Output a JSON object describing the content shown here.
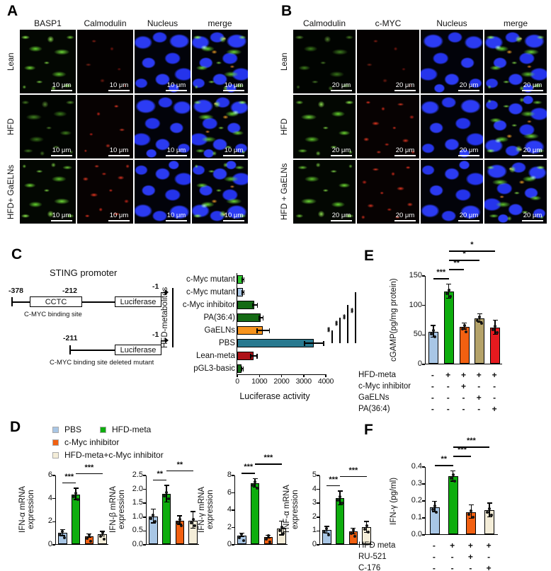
{
  "panelA": {
    "label": "A",
    "columns": [
      "BASP1",
      "Calmodulin",
      "Nucleus",
      "merge"
    ],
    "rows": [
      "Lean",
      "HFD",
      "HFD+ GaELNs"
    ],
    "scale_bar": "10 μm"
  },
  "panelB": {
    "label": "B",
    "columns": [
      "Calmodulin",
      "c-MYC",
      "Nucleus",
      "merge"
    ],
    "rows": [
      "Lean",
      "HFD",
      "HFD + GaELNs"
    ],
    "scale_bar": "20 μm"
  },
  "panelC": {
    "label": "C",
    "diagram": {
      "title": "STING promoter",
      "construct1": {
        "start": "-378",
        "site_box": "CCTC",
        "site_pos": "-212",
        "reporter": "Luciferase",
        "end": "-1",
        "caption": "C-MYC binding site"
      },
      "construct2": {
        "start": "-211",
        "reporter": "Luciferase",
        "end": "-1",
        "caption": "C-MYC binding site deleted mutant"
      }
    }
  },
  "panelD": {
    "label": "D",
    "legend": [
      {
        "label": "PBS",
        "color": "#a8c6e5"
      },
      {
        "label": "HFD-meta",
        "color": "#0ead0e"
      },
      {
        "label": "c-Myc inhibitor",
        "color": "#f26011"
      },
      {
        "label": "HFD-meta+c-Myc inhibitor",
        "color": "#f4edd8"
      }
    ]
  },
  "panelE": {
    "label": "E"
  },
  "panelF": {
    "label": "F"
  },
  "chart_data": [
    {
      "id": "luciferase",
      "type": "bar",
      "orientation": "horizontal",
      "xlabel": "Luciferase activity",
      "xlim": [
        0,
        4000
      ],
      "xticks": [
        0,
        1000,
        2000,
        3000,
        4000
      ],
      "categories": [
        "c-Myc mutant",
        "c-Myc mutant",
        "c-Myc inhibitor",
        "PA(36:4)",
        "GaELNs",
        "PBS",
        "Lean-meta",
        "pGL3-basic"
      ],
      "values": [
        240,
        240,
        780,
        1050,
        1150,
        3450,
        730,
        200
      ],
      "errors": [
        40,
        40,
        110,
        90,
        280,
        430,
        140,
        40
      ],
      "colors": [
        "#2fca2f",
        "#a8c6e5",
        "#156b15",
        "#156b15",
        "#f7941d",
        "#28798f",
        "#ae1117",
        "#156b15"
      ],
      "group_label": {
        "text": "HFD-metabolites",
        "from": 1,
        "to": 5
      },
      "sig": [
        {
          "a": 5,
          "b": 4,
          "label": "***"
        },
        {
          "a": 5,
          "b": 3,
          "label": "***"
        },
        {
          "a": 5,
          "b": 2,
          "label": "***"
        },
        {
          "a": 5,
          "b": 1,
          "label": "***"
        }
      ]
    },
    {
      "id": "ifn_alpha",
      "type": "bar",
      "ylabel_lines": [
        "IFN-α mRNA",
        "expression"
      ],
      "ylim": [
        0,
        6
      ],
      "yticks": [
        0,
        2,
        4,
        6
      ],
      "categories": [
        "PBS",
        "HFD-meta",
        "c-Myc inhibitor",
        "HFD-meta+c-Myc inhibitor"
      ],
      "values": [
        0.95,
        4.3,
        0.7,
        0.85
      ],
      "errors": [
        0.25,
        0.5,
        0.15,
        0.2
      ],
      "colors": [
        "#a8c6e5",
        "#0ead0e",
        "#f26011",
        "#f4edd8"
      ],
      "sig": [
        {
          "a": 0,
          "b": 1,
          "label": "***",
          "level": 0
        },
        {
          "a": 1,
          "b": 3,
          "label": "***",
          "level": 1
        }
      ]
    },
    {
      "id": "ifn_beta",
      "type": "bar",
      "ylabel_lines": [
        "IFN-β mRNA",
        "expression"
      ],
      "ylim": [
        0,
        2.5
      ],
      "yticks": [
        0,
        0.5,
        1,
        1.5,
        2,
        2.5
      ],
      "tick_dec": 1,
      "categories": [
        "PBS",
        "HFD-meta",
        "c-Myc inhibitor",
        "HFD-meta+c-Myc inhibitor"
      ],
      "values": [
        1.0,
        1.8,
        0.85,
        0.85
      ],
      "errors": [
        0.25,
        0.3,
        0.15,
        0.3
      ],
      "colors": [
        "#a8c6e5",
        "#0ead0e",
        "#f26011",
        "#f4edd8"
      ],
      "sig": [
        {
          "a": 0,
          "b": 1,
          "label": "**",
          "level": 0
        },
        {
          "a": 1,
          "b": 3,
          "label": "**",
          "level": 1
        }
      ]
    },
    {
      "id": "ifn_gamma",
      "type": "bar",
      "ylabel_lines": [
        "IFN-γ mRNA",
        "expression"
      ],
      "ylim": [
        0,
        8
      ],
      "yticks": [
        0,
        2,
        4,
        6,
        8
      ],
      "categories": [
        "PBS",
        "HFD-meta",
        "c-Myc inhibitor",
        "HFD-meta+c-Myc inhibitor"
      ],
      "values": [
        1.0,
        7.0,
        0.8,
        1.8
      ],
      "errors": [
        0.2,
        0.5,
        0.15,
        0.8
      ],
      "colors": [
        "#a8c6e5",
        "#0ead0e",
        "#f26011",
        "#f4edd8"
      ],
      "sig": [
        {
          "a": 0,
          "b": 1,
          "label": "***",
          "level": 0
        },
        {
          "a": 1,
          "b": 3,
          "label": "***",
          "level": 1
        }
      ]
    },
    {
      "id": "tnf_alpha",
      "type": "bar",
      "ylabel_lines": [
        "TNF-α mRNA",
        "expression"
      ],
      "ylim": [
        0,
        5
      ],
      "yticks": [
        0,
        1,
        2,
        3,
        4,
        5
      ],
      "categories": [
        "PBS",
        "HFD-meta",
        "c-Myc inhibitor",
        "HFD-meta+c-Myc inhibitor"
      ],
      "values": [
        1.0,
        3.3,
        0.9,
        1.2
      ],
      "errors": [
        0.25,
        0.5,
        0.2,
        0.4
      ],
      "colors": [
        "#a8c6e5",
        "#0ead0e",
        "#f26011",
        "#f4edd8"
      ],
      "sig": [
        {
          "a": 0,
          "b": 1,
          "label": "***",
          "level": 0
        },
        {
          "a": 1,
          "b": 3,
          "label": "***",
          "level": 1
        }
      ]
    },
    {
      "id": "cgamp",
      "type": "bar",
      "ylabel_lines": [
        "cGAMP(pg/mg protein)"
      ],
      "ylim": [
        0,
        150
      ],
      "yticks": [
        0,
        50,
        100,
        150
      ],
      "values": [
        54,
        122,
        63,
        77,
        61
      ],
      "errors": [
        10,
        12,
        5,
        7,
        12
      ],
      "colors": [
        "#a8c6e5",
        "#0ead0e",
        "#f26011",
        "#b5a36a",
        "#e61a1f"
      ],
      "sig": [
        {
          "a": 0,
          "b": 1,
          "label": "***",
          "level": 0
        },
        {
          "a": 1,
          "b": 2,
          "label": "**",
          "level": 1
        },
        {
          "a": 1,
          "b": 3,
          "label": "*",
          "level": 2
        },
        {
          "a": 1,
          "b": 4,
          "label": "*",
          "level": 3
        }
      ],
      "conditions": [
        {
          "label": "HFD-meta",
          "values": [
            "-",
            "+",
            "+",
            "+",
            "+"
          ]
        },
        {
          "label": "c-Myc inhibitor",
          "values": [
            "-",
            "-",
            "+",
            "-",
            "-"
          ]
        },
        {
          "label": "GaELNs",
          "values": [
            "-",
            "-",
            "-",
            "+",
            "-"
          ]
        },
        {
          "label": "PA(36:4)",
          "values": [
            "-",
            "-",
            "-",
            "-",
            "+"
          ]
        }
      ]
    },
    {
      "id": "ifng_protein",
      "type": "bar",
      "ylabel_lines": [
        "IFN-γ (pg/ml)"
      ],
      "ylim": [
        0,
        0.4
      ],
      "yticks": [
        0,
        0.1,
        0.2,
        0.3,
        0.4
      ],
      "tick_dec": 1,
      "values": [
        0.16,
        0.34,
        0.13,
        0.14
      ],
      "errors": [
        0.03,
        0.03,
        0.04,
        0.04
      ],
      "colors": [
        "#a8c6e5",
        "#0ead0e",
        "#f26011",
        "#f4edd8"
      ],
      "sig": [
        {
          "a": 0,
          "b": 1,
          "label": "**",
          "level": 0
        },
        {
          "a": 1,
          "b": 2,
          "label": "***",
          "level": 1
        },
        {
          "a": 1,
          "b": 3,
          "label": "***",
          "level": 2
        }
      ],
      "conditions": [
        {
          "label": "HFD meta",
          "values": [
            "-",
            "+",
            "+",
            "+"
          ]
        },
        {
          "label": "RU-521",
          "values": [
            "-",
            "-",
            "+",
            "-"
          ]
        },
        {
          "label": "C-176",
          "values": [
            "-",
            "-",
            "-",
            "+"
          ]
        }
      ]
    }
  ]
}
